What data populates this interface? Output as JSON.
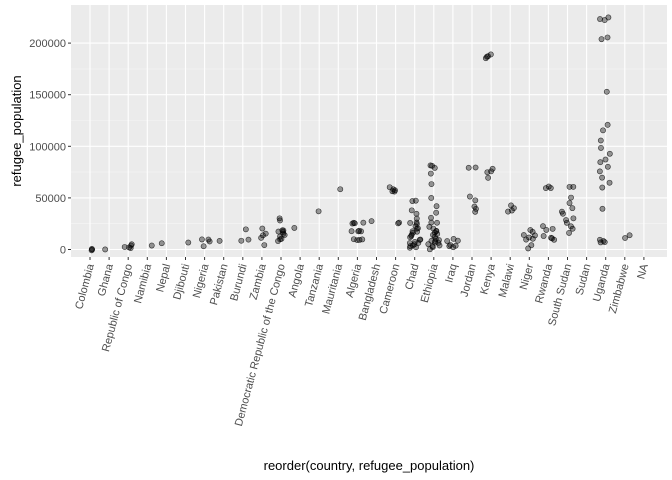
{
  "chart_data": {
    "type": "scatter",
    "xlabel": "reorder(country, refugee_population)",
    "ylabel": "refugee_population",
    "categories": [
      "Colombia",
      "Ghana",
      "Republic of Congo",
      "Namibia",
      "Nepal",
      "Djibouti",
      "Nigeria",
      "Pakistan",
      "Burundi",
      "Zambia",
      "Democratic Republic of the Congo",
      "Angola",
      "Tanzania",
      "Mauritania",
      "Algeria",
      "Bangladesh",
      "Cameroon",
      "Chad",
      "Ethiopia",
      "Iraq",
      "Jordan",
      "Kenya",
      "Malawi",
      "Niger",
      "Rwanda",
      "South Sudan",
      "Sudan",
      "Uganda",
      "Zimbabwe",
      "NA"
    ],
    "yticks": [
      0,
      50000,
      100000,
      150000,
      200000
    ],
    "ytick_labels": [
      "0",
      "50000",
      "100000",
      "150000",
      "200000"
    ],
    "ylim": [
      -9000,
      233000
    ],
    "grid": true,
    "points": [
      [
        "Colombia",
        [
          200,
          150,
          300
        ]
      ],
      [
        "Ghana",
        [
          800
        ]
      ],
      [
        "Republic of Congo",
        [
          2000,
          3500,
          4500,
          1500,
          3000
        ]
      ],
      [
        "Namibia",
        [
          4500
        ]
      ],
      [
        "Nepal",
        [
          6000
        ]
      ],
      [
        "Djibouti",
        [
          6500
        ]
      ],
      [
        "Nigeria",
        [
          9500,
          8500,
          3000,
          9000
        ]
      ],
      [
        "Pakistan",
        [
          8000
        ]
      ],
      [
        "Burundi",
        [
          8500,
          9500,
          19000
        ]
      ],
      [
        "Zambia",
        [
          12000,
          15000,
          21000,
          3500,
          13000
        ]
      ],
      [
        "Democratic Republic of the Congo",
        [
          15000,
          18000,
          30000,
          29000,
          9000,
          7500,
          16000,
          17000,
          12000,
          14000,
          11000,
          19000
        ]
      ],
      [
        "Angola",
        [
          21000
        ]
      ],
      [
        "Tanzania",
        [
          37000
        ]
      ],
      [
        "Mauritania",
        [
          58000
        ]
      ],
      [
        "Algeria",
        [
          10000,
          10000,
          10000,
          18000,
          18000,
          18000,
          26000,
          26000,
          26000,
          10000,
          18000,
          26000
        ]
      ],
      [
        "Bangladesh",
        [
          27000
        ]
      ],
      [
        "Cameroon",
        [
          58000,
          59000,
          57000,
          56000,
          60000,
          26000,
          27000
        ]
      ],
      [
        "Chad",
        [
          48000,
          46000,
          38000,
          35000,
          30000,
          27000,
          24000,
          22000,
          20000,
          18000,
          16000,
          14000,
          12000,
          10000,
          8000,
          6000,
          5000,
          4000,
          3000,
          2000,
          1000,
          25000,
          21000,
          17000,
          13000,
          9000,
          7000
        ]
      ],
      [
        "Ethiopia",
        [
          82000,
          81000,
          80000,
          74000,
          64000,
          50000,
          42000,
          36000,
          30000,
          25000,
          22000,
          20000,
          18000,
          16000,
          14000,
          12000,
          10000,
          8000,
          6000,
          5000,
          4000,
          3000,
          2000,
          1000,
          27000,
          19000,
          15000,
          11000,
          9000,
          7000
        ]
      ],
      [
        "Iraq",
        [
          9500,
          9000,
          8500,
          5000,
          4500,
          3000,
          2500
        ]
      ],
      [
        "Jordan",
        [
          80000,
          79000,
          52000,
          48000,
          41000,
          40000,
          36000
        ]
      ],
      [
        "Kenya",
        [
          186000,
          187000,
          189000,
          185000,
          79000,
          74000,
          70000,
          76000
        ]
      ],
      [
        "Malawi",
        [
          42000,
          40000,
          38000,
          36000
        ]
      ],
      [
        "Niger",
        [
          19000,
          17000,
          15000,
          11000,
          9000,
          5000,
          1000,
          14000,
          12000
        ]
      ],
      [
        "Rwanda",
        [
          61000,
          60000,
          59000,
          22000,
          20000,
          18000,
          14000,
          11000,
          10000,
          12000
        ]
      ],
      [
        "South Sudan",
        [
          61000,
          60000,
          50000,
          45000,
          40000,
          37000,
          34000,
          30000,
          25000,
          20000,
          17000,
          23000,
          28000
        ]
      ],
      [
        "Uganda",
        [
          224000,
          224000,
          223000,
          205000,
          203000,
          153000,
          120000,
          115000,
          105000,
          98000,
          92000,
          88000,
          85000,
          80000,
          75000,
          70000,
          65000,
          60000,
          40000,
          9000,
          8000,
          7000,
          6000
        ]
      ],
      [
        "Zimbabwe",
        [
          13000,
          12000
        ]
      ]
    ]
  }
}
